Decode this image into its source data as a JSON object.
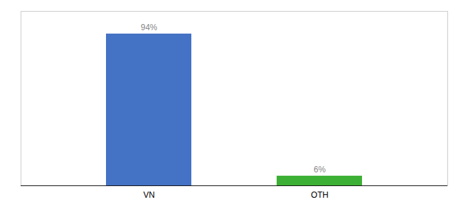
{
  "chart_data": {
    "type": "bar",
    "categories": [
      "VN",
      "OTH"
    ],
    "values": [
      94,
      6
    ],
    "value_labels": [
      "94%",
      "6%"
    ],
    "colors": [
      "#4472c4",
      "#3cb034"
    ],
    "ylim": [
      0,
      108
    ],
    "data_labels": true,
    "tick_labels": "x"
  }
}
